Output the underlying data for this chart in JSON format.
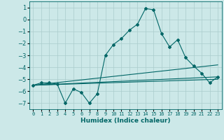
{
  "xlabel": "Humidex (Indice chaleur)",
  "background_color": "#cce8e8",
  "grid_color": "#aacccc",
  "line_color": "#006666",
  "xlim": [
    -0.5,
    23.5
  ],
  "ylim": [
    -7.5,
    1.5
  ],
  "yticks": [
    1,
    0,
    -1,
    -2,
    -3,
    -4,
    -5,
    -6,
    -7
  ],
  "xticks": [
    0,
    1,
    2,
    3,
    4,
    5,
    6,
    7,
    8,
    9,
    10,
    11,
    12,
    13,
    14,
    15,
    16,
    17,
    18,
    19,
    20,
    21,
    22,
    23
  ],
  "main_x": [
    0,
    1,
    2,
    3,
    4,
    5,
    6,
    7,
    8,
    9,
    10,
    11,
    12,
    13,
    14,
    15,
    16,
    17,
    18,
    19,
    20,
    21,
    22,
    23
  ],
  "main_y": [
    -5.5,
    -5.3,
    -5.3,
    -5.4,
    -7.0,
    -5.8,
    -6.1,
    -7.0,
    -6.2,
    -3.0,
    -2.1,
    -1.6,
    -0.9,
    -0.4,
    0.9,
    0.8,
    -1.2,
    -2.3,
    -1.7,
    -3.2,
    -3.9,
    -4.5,
    -5.3,
    -4.8
  ],
  "line1_x": [
    0,
    23
  ],
  "line1_y": [
    -5.5,
    -4.8
  ],
  "line2_x": [
    0,
    23
  ],
  "line2_y": [
    -5.5,
    -3.8
  ],
  "line3_x": [
    0,
    23
  ],
  "line3_y": [
    -5.5,
    -5.0
  ]
}
